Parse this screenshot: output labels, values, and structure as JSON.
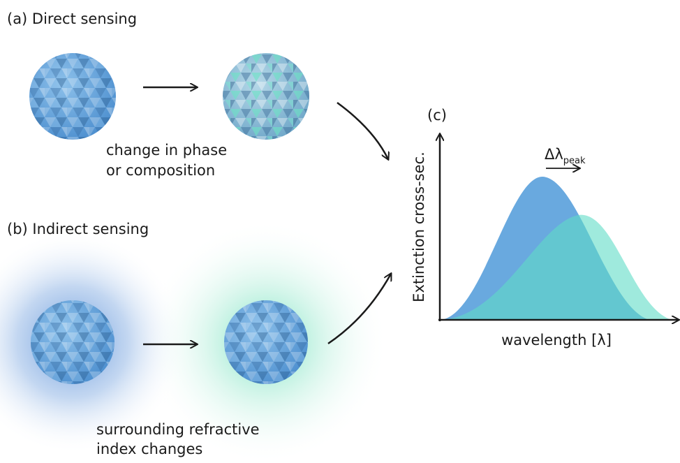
{
  "panel_a": {
    "label": "(a)  Direct sensing",
    "caption_line1": "change in phase",
    "caption_line2": "or composition"
  },
  "panel_b": {
    "label": "(b) Indirect sensing",
    "caption_line1": "surrounding refractive",
    "caption_line2": "index changes"
  },
  "panel_c": {
    "label": "(c)",
    "y_axis_label": "Extinction cross-sec.",
    "x_axis_label": "wavelength [λ]",
    "shift_label": "Δλ",
    "shift_subscript": "peak"
  }
}
